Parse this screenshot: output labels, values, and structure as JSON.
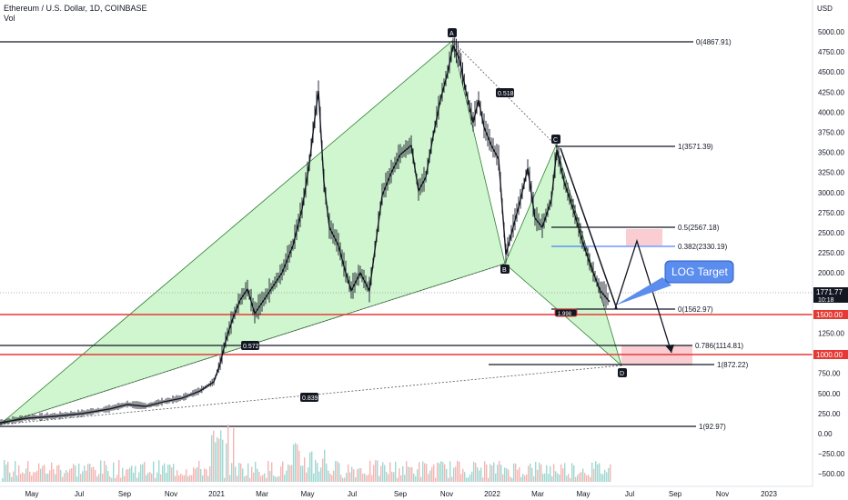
{
  "header": {
    "symbol_line": "Ethereum / U.S. Dollar, 1D, COINBASE",
    "indicator_line": "Vol"
  },
  "chart_data": {
    "type": "candlestick",
    "currency_label": "USD",
    "y_ticks": [
      "5000.00",
      "4750.00",
      "4500.00",
      "4250.00",
      "4000.00",
      "3750.00",
      "3500.00",
      "3250.00",
      "3000.00",
      "2750.00",
      "2500.00",
      "2250.00",
      "2000.00",
      "1750.00",
      "1500.00",
      "1250.00",
      "1000.00",
      "750.00",
      "500.00",
      "250.00",
      "0.00",
      "−250.00",
      "−500.00"
    ],
    "x_ticks": [
      "May",
      "Jul",
      "Sep",
      "Nov",
      "2021",
      "Mar",
      "May",
      "Jul",
      "Sep",
      "Nov",
      "2022",
      "Mar",
      "May",
      "Jul",
      "Sep",
      "Nov",
      "2023"
    ],
    "price_badges": {
      "last_price": "1771.77",
      "countdown": "10:18",
      "level_upper": "1500.00",
      "level_lower": "1000.00"
    },
    "fib_levels": [
      {
        "label": "0(4867.91)",
        "price": 4867.91
      },
      {
        "label": "1(3571.39)",
        "price": 3571.39
      },
      {
        "label": "0.5(2567.18)",
        "price": 2567.18
      },
      {
        "label": "0.382(2330.19)",
        "price": 2330.19
      },
      {
        "label": "0(1562.97)",
        "price": 1562.97
      },
      {
        "label": "0.786(1114.81)",
        "price": 1114.81
      },
      {
        "label": "1(872.22)",
        "price": 872.22
      },
      {
        "label": "1(92.97)",
        "price": 92.97
      }
    ],
    "pattern_points": [
      {
        "name": "A",
        "price": 4867.91
      },
      {
        "name": "B",
        "price": 2160
      },
      {
        "name": "C",
        "price": 3571.39
      },
      {
        "name": "D",
        "price": 872.22
      }
    ],
    "ratio_labels": [
      "0.518",
      "0.572",
      "0.839",
      "1.998"
    ],
    "callout": "LOG Target",
    "colors": {
      "harmonic_fill": "#c8f5c8",
      "harmonic_line": "#2e7d32",
      "support_line": "#e53935",
      "target_zone": "#f8c8cc",
      "callout_bg": "#5b8def",
      "fib_blue": "#2962ff",
      "candle_up": "#26a69a",
      "candle_down": "#ef5350",
      "price_line": "#131722"
    }
  }
}
